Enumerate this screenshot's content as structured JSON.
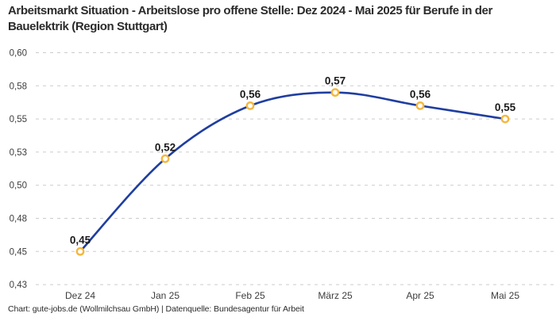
{
  "title": "Arbeitsmarkt Situation - Arbeitslose pro offene Stelle: Dez 2024 - Mai 2025 für Berufe in der Bauelektrik (Region Stuttgart)",
  "footer": "Chart: gute-jobs.de (Wollmilchsau GmbH) | Datenquelle: Bundesagentur für Arbeit",
  "chart_data": {
    "type": "line",
    "title": "Arbeitsmarkt Situation - Arbeitslose pro offene Stelle: Dez 2024 - Mai 2025 für Berufe in der Bauelektrik (Region Stuttgart)",
    "categories": [
      "Dez 24",
      "Jan 25",
      "Feb 25",
      "März 25",
      "Apr 25",
      "Mai 25"
    ],
    "values": [
      0.45,
      0.52,
      0.56,
      0.57,
      0.56,
      0.55
    ],
    "value_labels": [
      "0,45",
      "0,52",
      "0,56",
      "0,57",
      "0,56",
      "0,55"
    ],
    "xlabel": "",
    "ylabel": "",
    "ylim": [
      0.425,
      0.6
    ],
    "y_tick_values": [
      0.6,
      0.575,
      0.55,
      0.525,
      0.5,
      0.475,
      0.45,
      0.425
    ],
    "y_tick_labels": [
      "0,60",
      "0,58",
      "0,55",
      "0,53",
      "0,50",
      "0,48",
      "0,45",
      "0,43"
    ],
    "grid": "horizontal-dashed",
    "legend": "none",
    "colors": {
      "line": "#1f3ea0",
      "marker_stroke": "#f4b73e",
      "marker_fill": "#ffffff",
      "grid": "#cccccc",
      "tick_text": "#3d3d3d",
      "label_text": "#1a1a1a"
    }
  }
}
